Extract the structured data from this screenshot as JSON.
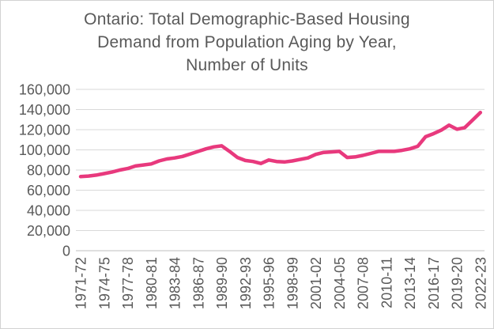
{
  "header": {
    "title_lines": [
      "Ontario: Total Demographic-Based Housing",
      "Demand from Population Aging by Year,",
      "Number of Units"
    ]
  },
  "chart_data": {
    "type": "line",
    "title": "Ontario: Total Demographic-Based Housing Demand from Population Aging by Year, Number of Units",
    "xlabel": "",
    "ylabel": "",
    "x": [
      "1971-72",
      "1972-73",
      "1973-74",
      "1974-75",
      "1975-76",
      "1976-77",
      "1977-78",
      "1978-79",
      "1979-80",
      "1980-81",
      "1981-82",
      "1982-83",
      "1983-84",
      "1984-85",
      "1985-86",
      "1986-87",
      "1987-88",
      "1988-89",
      "1989-90",
      "1990-91",
      "1991-92",
      "1992-93",
      "1993-94",
      "1994-95",
      "1995-96",
      "1996-97",
      "1997-98",
      "1998-99",
      "1999-00",
      "2000-01",
      "2001-02",
      "2002-03",
      "2003-04",
      "2004-05",
      "2005-06",
      "2006-07",
      "2007-08",
      "2008-09",
      "2009-10",
      "2010-11",
      "2011-12",
      "2012-13",
      "2013-14",
      "2014-15",
      "2015-16",
      "2016-17",
      "2017-18",
      "2018-19",
      "2019-20",
      "2020-21",
      "2021-22",
      "2022-23"
    ],
    "values": [
      73500,
      74000,
      75000,
      76500,
      78000,
      80000,
      81500,
      84000,
      85000,
      86000,
      89000,
      91000,
      92000,
      93500,
      96000,
      98500,
      101000,
      103000,
      104000,
      98500,
      92500,
      89500,
      88500,
      86500,
      90000,
      88500,
      88000,
      89000,
      90500,
      92000,
      95500,
      97500,
      98000,
      98500,
      92500,
      93000,
      94500,
      96500,
      98500,
      98500,
      98500,
      99500,
      101000,
      103500,
      113000,
      116000,
      119500,
      124500,
      120500,
      122000,
      129500,
      137000
    ],
    "x_tick_every": 3,
    "x_tick_labels": [
      "1971-72",
      "1974-75",
      "1977-78",
      "1980-81",
      "1983-84",
      "1986-87",
      "1989-90",
      "1992-93",
      "1995-96",
      "1998-99",
      "2001-02",
      "2004-05",
      "2007-08",
      "2010-11",
      "2013-14",
      "2016-17",
      "2019-20",
      "2022-23"
    ],
    "y_ticks": [
      0,
      20000,
      40000,
      60000,
      80000,
      100000,
      120000,
      140000,
      160000
    ],
    "y_tick_labels": [
      "0",
      "20,000",
      "40,000",
      "60,000",
      "80,000",
      "100,000",
      "120,000",
      "140,000",
      "160,000"
    ],
    "ylim": [
      0,
      160000
    ],
    "grid": "horizontal",
    "legend": "none",
    "line_color": "#e8397d",
    "axis_text_color": "#595959",
    "grid_color": "#d9d9d9",
    "axis_line_color": "#bfbfbf"
  }
}
